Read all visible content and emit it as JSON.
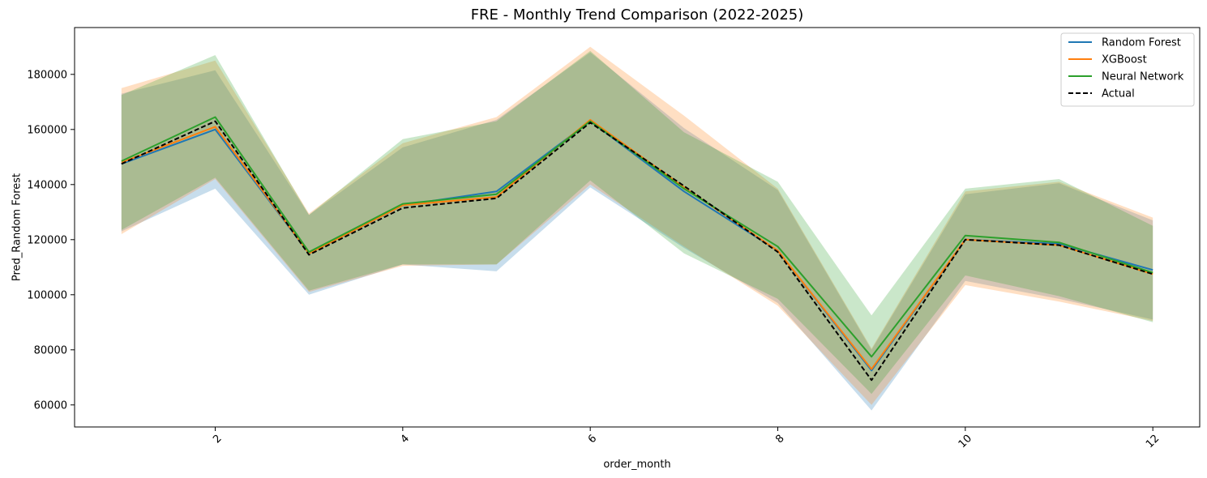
{
  "chart_data": {
    "type": "line",
    "title": "FRE - Monthly Trend Comparison (2022-2025)",
    "xlabel": "order_month",
    "ylabel": "Pred_Random Forest",
    "xlim": [
      0.5,
      12.5
    ],
    "ylim": [
      52000,
      197000
    ],
    "xticks": [
      2,
      4,
      6,
      8,
      10,
      12
    ],
    "yticks": [
      60000,
      80000,
      100000,
      120000,
      140000,
      160000,
      180000
    ],
    "x": [
      1,
      2,
      3,
      4,
      5,
      6,
      7,
      8,
      9,
      10,
      11,
      12
    ],
    "grid": false,
    "legend_position": "top-right",
    "series": [
      {
        "name": "Random Forest",
        "color": "#1f77b4",
        "dashed": false,
        "values": [
          147500,
          160000,
          115000,
          132500,
          137500,
          163000,
          137500,
          116000,
          72500,
          120000,
          118500,
          109000
        ],
        "band_upper": [
          173000,
          181500,
          129000,
          153500,
          163500,
          188000,
          160500,
          138000,
          80000,
          136500,
          140500,
          127000
        ],
        "band_lower": [
          123000,
          138500,
          100000,
          111000,
          108500,
          139000,
          117000,
          97000,
          58000,
          105000,
          98500,
          91000
        ]
      },
      {
        "name": "XGBoost",
        "color": "#ff7f0e",
        "dashed": false,
        "values": [
          148000,
          161000,
          115000,
          132500,
          135500,
          163500,
          139000,
          116000,
          73000,
          120000,
          118000,
          107500
        ],
        "band_upper": [
          175000,
          185000,
          129500,
          155000,
          164500,
          190000,
          165000,
          138500,
          80500,
          137500,
          141000,
          128000
        ],
        "band_lower": [
          122000,
          142000,
          101000,
          110500,
          111000,
          140000,
          117500,
          96000,
          60000,
          103500,
          97500,
          90500
        ]
      },
      {
        "name": "Neural Network",
        "color": "#2ca02c",
        "dashed": false,
        "values": [
          148500,
          164500,
          115500,
          133000,
          136500,
          163000,
          138500,
          117500,
          77500,
          121500,
          119000,
          108000
        ],
        "band_upper": [
          172500,
          187000,
          129000,
          156500,
          163000,
          188500,
          159000,
          141000,
          92500,
          138500,
          142000,
          125000
        ],
        "band_lower": [
          123500,
          142500,
          101500,
          111000,
          111000,
          141500,
          115000,
          98500,
          64000,
          107000,
          99500,
          90000
        ]
      },
      {
        "name": "Actual",
        "color": "#000000",
        "dashed": true,
        "values": [
          147500,
          163000,
          114500,
          131500,
          135000,
          162500,
          139500,
          115500,
          69000,
          120000,
          118000,
          107500
        ]
      }
    ]
  }
}
